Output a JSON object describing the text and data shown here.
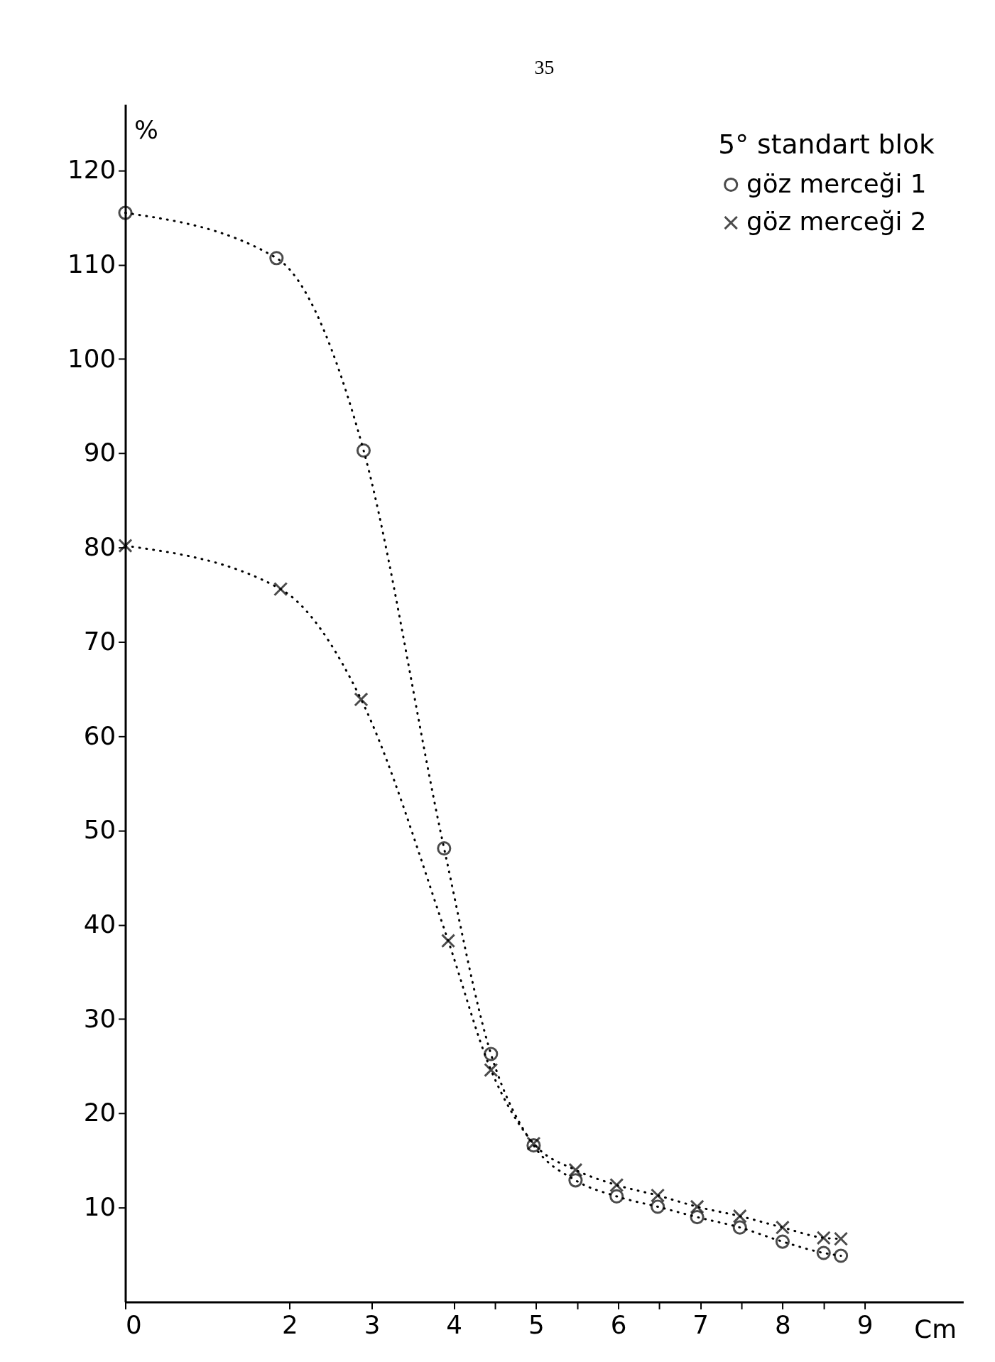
{
  "chart_data": {
    "type": "line",
    "xlabel": "Cm",
    "ylabel": "%",
    "legend_title": "5° standart blok",
    "legend": "top right",
    "line_style": "dotted",
    "grid": false,
    "xlim": [
      0,
      10.2
    ],
    "ylim": [
      0,
      127
    ],
    "xticks": [
      0,
      2,
      3,
      4,
      {
        "value": 4.5,
        "label": null
      },
      5,
      {
        "value": 5.5,
        "label": null
      },
      6,
      {
        "value": 6.5,
        "label": null
      },
      7,
      {
        "value": 7.5,
        "label": null
      },
      8,
      {
        "value": 8.5,
        "label": null
      },
      9
    ],
    "yticks": [
      10,
      20,
      30,
      40,
      50,
      60,
      70,
      80,
      90,
      100,
      110,
      120
    ],
    "annotations": [
      "35"
    ],
    "series": [
      {
        "name": "göz merceği 1",
        "color": "#000000",
        "marker": "circle",
        "x": [
          0,
          1.84,
          2.9,
          3.88,
          4.45,
          4.97,
          5.48,
          5.98,
          6.48,
          6.96,
          7.48,
          8.0,
          8.5,
          8.71
        ],
        "values": [
          115.5,
          110.7,
          90.3,
          48.1,
          26.3,
          16.6,
          12.9,
          11.2,
          10.1,
          9.0,
          7.9,
          6.4,
          5.2,
          4.9
        ]
      },
      {
        "name": "göz merceği 2",
        "color": "#000000",
        "marker": "cross",
        "x": [
          0,
          1.89,
          2.87,
          3.93,
          4.45,
          4.97,
          5.48,
          5.98,
          6.48,
          6.96,
          7.48,
          8.0,
          8.5,
          8.71
        ],
        "values": [
          80.2,
          75.6,
          63.9,
          38.3,
          24.6,
          16.8,
          14.0,
          12.4,
          11.3,
          10.1,
          9.1,
          7.9,
          6.8,
          6.7
        ]
      }
    ]
  }
}
